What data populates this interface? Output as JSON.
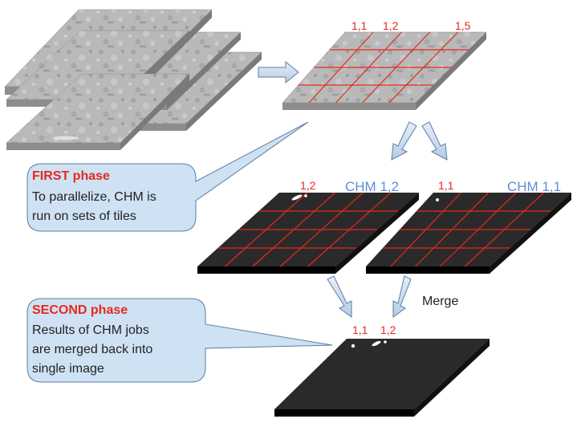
{
  "tile_labels_input": [
    "1,1",
    "1,2",
    "1,5"
  ],
  "chm_left": {
    "tile_label": "1,2",
    "title": "CHM 1,2"
  },
  "chm_right": {
    "tile_label": "1,1",
    "title": "CHM 1,1"
  },
  "merge_label": "Merge",
  "merged_labels": [
    "1,1",
    "1,2"
  ],
  "first_phase": {
    "title": "FIRST phase",
    "lines": [
      "To parallelize, CHM is",
      "run on sets of tiles"
    ]
  },
  "second_phase": {
    "title": "SECOND phase",
    "lines": [
      "Results of CHM jobs",
      "are merged back into",
      "single image"
    ]
  },
  "colors": {
    "grid_red": "#e8281e",
    "chm_blue": "#5b8fd6",
    "callout_fill": "#cfe2f3",
    "callout_stroke": "#5a7da6",
    "dark_plate": "#2a2a2a",
    "em_gray": "#b4b4b4"
  }
}
